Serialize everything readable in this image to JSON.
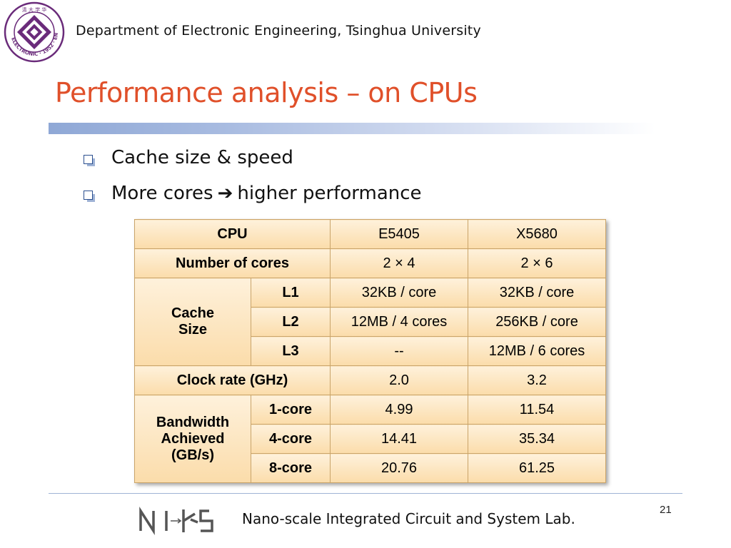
{
  "header": {
    "department": "Department of Electronic Engineering, Tsinghua University"
  },
  "slide": {
    "title": "Performance analysis – on CPUs",
    "bullets": [
      {
        "text": "Cache size & speed"
      },
      {
        "pre": "More cores",
        "arrow": "➔",
        "post": "higher performance"
      }
    ]
  },
  "table": {
    "header": {
      "label": "CPU",
      "col1": "E5405",
      "col2": "X5680"
    },
    "cores": {
      "label": "Number of cores",
      "col1": "2 × 4",
      "col2": "2 × 6"
    },
    "cache": {
      "label_line1": "Cache",
      "label_line2": "Size",
      "rows": [
        {
          "level": "L1",
          "col1": "32KB / core",
          "col2": "32KB / core"
        },
        {
          "level": "L2",
          "col1": "12MB / 4 cores",
          "col2": "256KB / core"
        },
        {
          "level": "L3",
          "col1": "--",
          "col2": "12MB / 6 cores"
        }
      ]
    },
    "clock": {
      "label": "Clock rate (GHz)",
      "col1": "2.0",
      "col2": "3.2"
    },
    "bandwidth": {
      "label_line1": "Bandwidth",
      "label_line2": "Achieved",
      "label_line3": "(GB/s)",
      "rows": [
        {
          "cores": "1-core",
          "col1": "4.99",
          "col2": "11.54"
        },
        {
          "cores": "4-core",
          "col1": "14.41",
          "col2": "35.34"
        },
        {
          "cores": "8-core",
          "col1": "20.76",
          "col2": "61.25"
        }
      ]
    }
  },
  "footer": {
    "logo_text": "NICS",
    "lab": "Nano-scale Integrated Circuit and System Lab.",
    "page_number": "21"
  },
  "colors": {
    "title": "#e0502a",
    "logo_purple": "#6a2b7a",
    "bar_blue": "#8fa8d6",
    "cell_top": "#fef1db",
    "cell_bottom": "#fbdcaa"
  }
}
